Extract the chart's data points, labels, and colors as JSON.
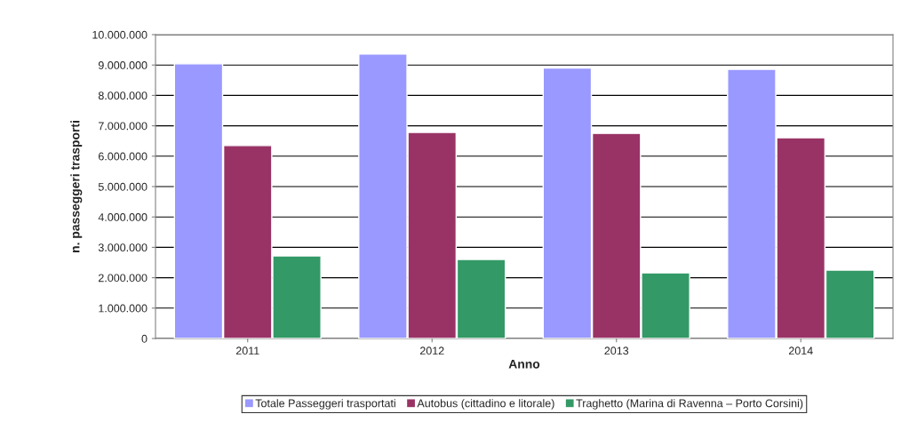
{
  "chart_data": {
    "type": "bar",
    "xlabel": "Anno",
    "ylabel": "n. passeggeri trasporti",
    "categories": [
      "2011",
      "2012",
      "2013",
      "2014"
    ],
    "series": [
      {
        "name": "Totale Passeggeri trasportati",
        "color": "#9999ff",
        "values": [
          9040000,
          9360000,
          8900000,
          8860000
        ]
      },
      {
        "name": "Autobus (cittadino e litorale)",
        "color": "#993366",
        "values": [
          6350000,
          6780000,
          6750000,
          6610000
        ]
      },
      {
        "name": "Traghetto (Marina di Ravenna – Porto Corsini)",
        "color": "#339966",
        "values": [
          2720000,
          2600000,
          2160000,
          2250000
        ]
      }
    ],
    "ylim": [
      0,
      10000000
    ],
    "yticks": [
      0,
      {
        "value": 1000000,
        "label": "1.000.000"
      },
      {
        "value": 2000000,
        "label": "2.000.000"
      },
      {
        "value": 3000000,
        "label": "3.000.000"
      },
      {
        "value": 4000000,
        "label": "4.000.000"
      },
      {
        "value": 5000000,
        "label": "5.000.000"
      },
      {
        "value": 6000000,
        "label": "6.000.000"
      },
      {
        "value": 7000000,
        "label": "7.000.000"
      },
      {
        "value": 8000000,
        "label": "8.000.000"
      },
      {
        "value": 9000000,
        "label": "9.000.000"
      },
      {
        "value": 10000000,
        "label": "10.000.000"
      }
    ],
    "grid": "y",
    "legend": "bottom"
  }
}
